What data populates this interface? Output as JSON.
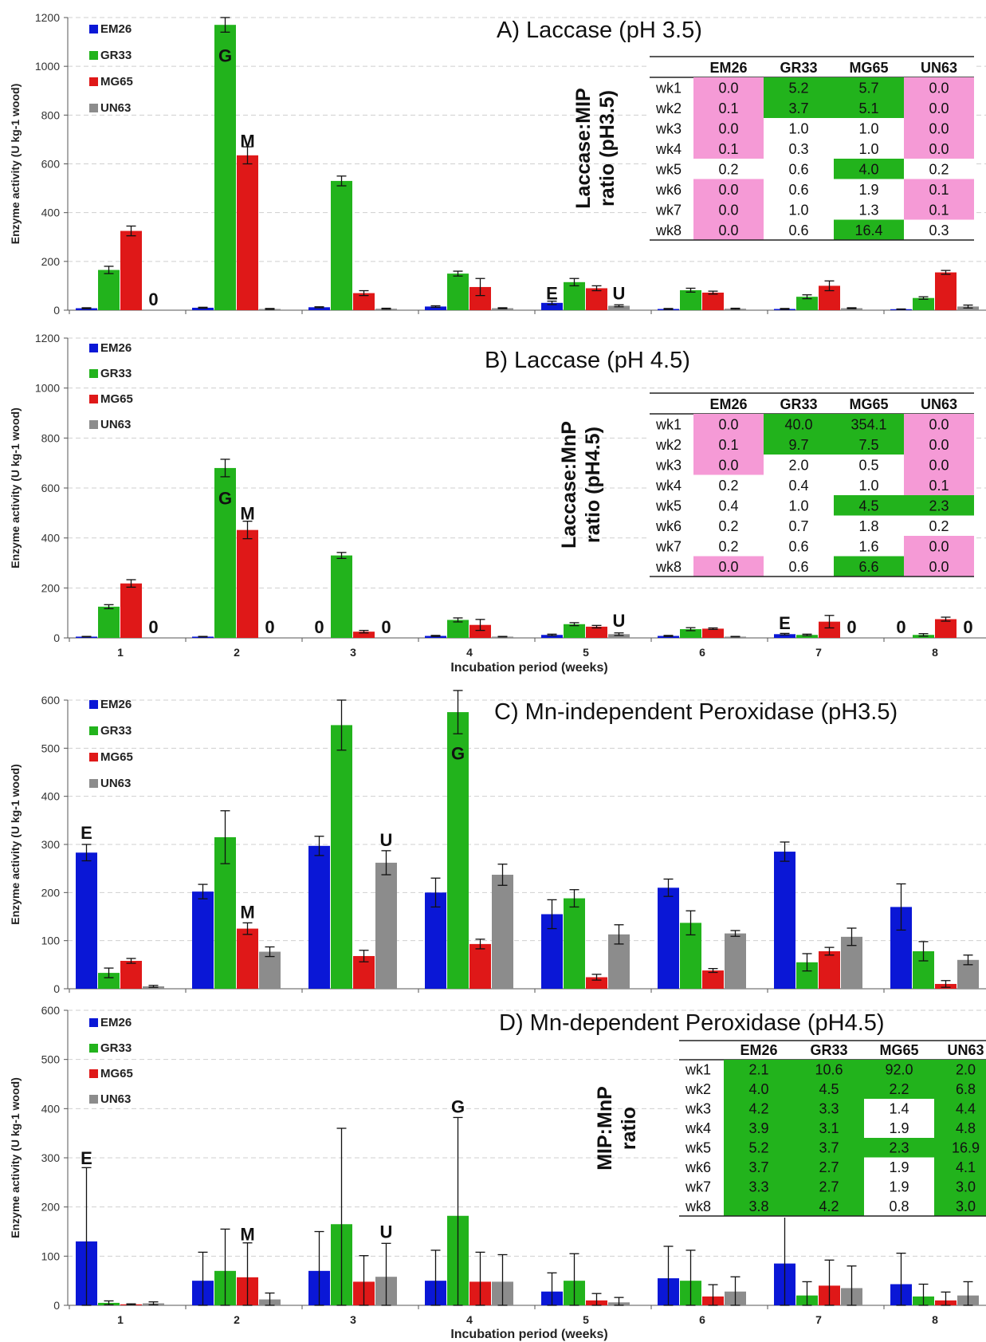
{
  "colors": {
    "EM26": "#0a17d6",
    "GR33": "#22b31c",
    "MG65": "#df1818",
    "UN63": "#8c8c8c",
    "cell_green": "#22b31c",
    "cell_pink": "#f59ad6",
    "axis": "#555555",
    "grid": "#cfcfcf"
  },
  "chart_data": [
    {
      "type": "bar",
      "title": "A) Laccase (pH 3.5)",
      "ylabel": "Enzyme activity (U kg-1 wood)",
      "xlabel": "",
      "ylim": [
        0,
        1200
      ],
      "yticks": [
        0,
        200,
        400,
        600,
        800,
        1000,
        1200
      ],
      "categories": [
        "1",
        "2",
        "3",
        "4",
        "5",
        "6",
        "7",
        "8"
      ],
      "show_xtick_labels": false,
      "legend_position": "top-left",
      "series": [
        {
          "name": "EM26",
          "values": [
            8,
            10,
            12,
            15,
            30,
            5,
            5,
            4
          ],
          "errors": [
            2,
            2,
            2,
            3,
            7,
            2,
            2,
            1
          ]
        },
        {
          "name": "GR33",
          "values": [
            165,
            1170,
            530,
            150,
            115,
            82,
            55,
            50
          ],
          "errors": [
            15,
            30,
            20,
            10,
            15,
            8,
            8,
            5
          ]
        },
        {
          "name": "MG65",
          "values": [
            325,
            635,
            70,
            95,
            90,
            72,
            100,
            155
          ],
          "errors": [
            20,
            35,
            10,
            35,
            10,
            6,
            20,
            8
          ]
        },
        {
          "name": "UN63",
          "values": [
            0,
            5,
            6,
            8,
            18,
            6,
            8,
            15
          ],
          "errors": [
            0,
            2,
            2,
            2,
            4,
            2,
            2,
            6
          ]
        }
      ],
      "annotations": [
        {
          "text": "0",
          "week": "1",
          "series": "UN63",
          "y": 45
        },
        {
          "text": "G",
          "week": "2",
          "series": "GR33",
          "y": 1045
        },
        {
          "text": "M",
          "week": "2",
          "series": "MG65",
          "y": 695
        },
        {
          "text": "E",
          "week": "5",
          "series": "EM26",
          "y": 70
        },
        {
          "text": "U",
          "week": "5",
          "series": "UN63",
          "y": 70
        }
      ],
      "table": {
        "side_label_lines": [
          "Laccase:MIP",
          "ratio (pH3.5)"
        ],
        "columns": [
          "",
          "EM26",
          "GR33",
          "MG65",
          "UN63"
        ],
        "rows": [
          [
            "wk1",
            "0.0",
            "5.2",
            "5.7",
            "0.0"
          ],
          [
            "wk2",
            "0.1",
            "3.7",
            "5.1",
            "0.0"
          ],
          [
            "wk3",
            "0.0",
            "1.0",
            "1.0",
            "0.0"
          ],
          [
            "wk4",
            "0.1",
            "0.3",
            "1.0",
            "0.0"
          ],
          [
            "wk5",
            "0.2",
            "0.6",
            "4.0",
            "0.2"
          ],
          [
            "wk6",
            "0.0",
            "0.6",
            "1.9",
            "0.1"
          ],
          [
            "wk7",
            "0.0",
            "1.0",
            "1.3",
            "0.1"
          ],
          [
            "wk8",
            "0.0",
            "0.6",
            "16.4",
            "0.3"
          ]
        ],
        "highlight": [
          [
            "p",
            "g",
            "g",
            "p"
          ],
          [
            "p",
            "g",
            "g",
            "p"
          ],
          [
            "p",
            "",
            "",
            "p"
          ],
          [
            "p",
            "",
            "",
            "p"
          ],
          [
            "",
            "",
            "g",
            ""
          ],
          [
            "p",
            "",
            "",
            "p"
          ],
          [
            "p",
            "",
            "",
            "p"
          ],
          [
            "p",
            "",
            "g",
            ""
          ]
        ]
      }
    },
    {
      "type": "bar",
      "title": "B) Laccase (pH 4.5)",
      "ylabel": "Enzyme activity (U kg-1 wood)",
      "xlabel": "Incubation period (weeks)",
      "ylim": [
        0,
        1200
      ],
      "yticks": [
        0,
        200,
        400,
        600,
        800,
        1000,
        1200
      ],
      "categories": [
        "1",
        "2",
        "3",
        "4",
        "5",
        "6",
        "7",
        "8"
      ],
      "show_xtick_labels": true,
      "legend_position": "top-left",
      "series": [
        {
          "name": "EM26",
          "values": [
            5,
            5,
            0,
            8,
            12,
            8,
            15,
            0
          ],
          "errors": [
            1,
            1,
            0,
            2,
            3,
            2,
            3,
            0
          ]
        },
        {
          "name": "GR33",
          "values": [
            125,
            680,
            330,
            72,
            55,
            35,
            12,
            12
          ],
          "errors": [
            8,
            35,
            12,
            8,
            6,
            6,
            3,
            5
          ]
        },
        {
          "name": "MG65",
          "values": [
            218,
            432,
            25,
            52,
            45,
            37,
            65,
            75
          ],
          "errors": [
            15,
            35,
            5,
            22,
            5,
            3,
            25,
            8
          ]
        },
        {
          "name": "UN63",
          "values": [
            0,
            0,
            0,
            5,
            15,
            5,
            0,
            0
          ],
          "errors": [
            0,
            0,
            0,
            1,
            5,
            1,
            0,
            0
          ]
        }
      ],
      "annotations": [
        {
          "text": "0",
          "week": "1",
          "series": "UN63",
          "y": 45
        },
        {
          "text": "G",
          "week": "2",
          "series": "GR33",
          "y": 560
        },
        {
          "text": "M",
          "week": "2",
          "series": "MG65",
          "y": 500
        },
        {
          "text": "0",
          "week": "2",
          "series": "UN63",
          "y": 45
        },
        {
          "text": "0",
          "week": "3",
          "series": "EM26",
          "y": 45
        },
        {
          "text": "0",
          "week": "3",
          "series": "UN63",
          "y": 45
        },
        {
          "text": "U",
          "week": "5",
          "series": "UN63",
          "y": 70
        },
        {
          "text": "E",
          "week": "7",
          "series": "EM26",
          "y": 60
        },
        {
          "text": "0",
          "week": "7",
          "series": "UN63",
          "y": 45
        },
        {
          "text": "0",
          "week": "8",
          "series": "EM26",
          "y": 45
        },
        {
          "text": "0",
          "week": "8",
          "series": "UN63",
          "y": 45
        }
      ],
      "table": {
        "side_label_lines": [
          "Laccase:MnP",
          "ratio (pH4.5)"
        ],
        "columns": [
          "",
          "EM26",
          "GR33",
          "MG65",
          "UN63"
        ],
        "rows": [
          [
            "wk1",
            "0.0",
            "40.0",
            "354.1",
            "0.0"
          ],
          [
            "wk2",
            "0.1",
            "9.7",
            "7.5",
            "0.0"
          ],
          [
            "wk3",
            "0.0",
            "2.0",
            "0.5",
            "0.0"
          ],
          [
            "wk4",
            "0.2",
            "0.4",
            "1.0",
            "0.1"
          ],
          [
            "wk5",
            "0.4",
            "1.0",
            "4.5",
            "2.3"
          ],
          [
            "wk6",
            "0.2",
            "0.7",
            "1.8",
            "0.2"
          ],
          [
            "wk7",
            "0.2",
            "0.6",
            "1.6",
            "0.0"
          ],
          [
            "wk8",
            "0.0",
            "0.6",
            "6.6",
            "0.0"
          ]
        ],
        "highlight": [
          [
            "p",
            "g",
            "g",
            "p"
          ],
          [
            "p",
            "g",
            "g",
            "p"
          ],
          [
            "p",
            "",
            "",
            "p"
          ],
          [
            "",
            "",
            "",
            "p"
          ],
          [
            "",
            "",
            "g",
            "g"
          ],
          [
            "",
            "",
            "",
            ""
          ],
          [
            "",
            "",
            "",
            "p"
          ],
          [
            "p",
            "",
            "g",
            "p"
          ]
        ]
      }
    },
    {
      "type": "bar",
      "title": "C) Mn-independent Peroxidase (pH3.5)",
      "ylabel": "Enzyme activity (U kg-1 wood)",
      "xlabel": "",
      "ylim": [
        0,
        600
      ],
      "yticks": [
        0,
        100,
        200,
        300,
        400,
        500,
        600
      ],
      "categories": [
        "1",
        "2",
        "3",
        "4",
        "5",
        "6",
        "7",
        "8"
      ],
      "show_xtick_labels": false,
      "legend_position": "top-left",
      "series": [
        {
          "name": "EM26",
          "values": [
            283,
            202,
            297,
            200,
            155,
            210,
            285,
            170
          ],
          "errors": [
            17,
            15,
            20,
            30,
            30,
            18,
            20,
            48
          ]
        },
        {
          "name": "GR33",
          "values": [
            33,
            315,
            548,
            575,
            188,
            137,
            55,
            78
          ],
          "errors": [
            10,
            55,
            52,
            45,
            18,
            25,
            18,
            20
          ]
        },
        {
          "name": "MG65",
          "values": [
            58,
            125,
            68,
            93,
            24,
            38,
            78,
            10
          ],
          "errors": [
            5,
            12,
            12,
            10,
            6,
            4,
            8,
            7
          ]
        },
        {
          "name": "UN63",
          "values": [
            5,
            77,
            262,
            237,
            113,
            115,
            108,
            60
          ],
          "errors": [
            2,
            10,
            25,
            22,
            20,
            6,
            18,
            10
          ]
        }
      ],
      "annotations": [
        {
          "text": "E",
          "week": "1",
          "series": "EM26",
          "y": 325
        },
        {
          "text": "G",
          "week": "4",
          "series": "GR33",
          "y": 490
        },
        {
          "text": "U",
          "week": "3",
          "series": "UN63",
          "y": 310
        },
        {
          "text": "M",
          "week": "2",
          "series": "MG65",
          "y": 160
        }
      ]
    },
    {
      "type": "bar",
      "title": "D) Mn-dependent Peroxidase (pH4.5)",
      "ylabel": "Enzyme activity (U kg-1 wood)",
      "xlabel": "Incubation period (weeks)",
      "ylim": [
        0,
        600
      ],
      "yticks": [
        0,
        100,
        200,
        300,
        400,
        500,
        600
      ],
      "categories": [
        "1",
        "2",
        "3",
        "4",
        "5",
        "6",
        "7",
        "8"
      ],
      "show_xtick_labels": true,
      "legend_position": "top-left",
      "series": [
        {
          "name": "EM26",
          "values": [
            130,
            50,
            70,
            50,
            28,
            55,
            85,
            43
          ],
          "errors": [
            150,
            58,
            80,
            62,
            38,
            65,
            98,
            63
          ]
        },
        {
          "name": "GR33",
          "values": [
            5,
            70,
            165,
            182,
            50,
            50,
            20,
            18
          ],
          "errors": [
            4,
            85,
            195,
            200,
            55,
            62,
            28,
            25
          ]
        },
        {
          "name": "MG65",
          "values": [
            2,
            57,
            48,
            48,
            10,
            18,
            40,
            10
          ],
          "errors": [
            1,
            70,
            53,
            60,
            14,
            24,
            52,
            17
          ]
        },
        {
          "name": "UN63",
          "values": [
            4,
            12,
            58,
            48,
            6,
            28,
            35,
            20
          ],
          "errors": [
            3,
            13,
            68,
            55,
            10,
            30,
            45,
            28
          ]
        }
      ],
      "annotations": [
        {
          "text": "E",
          "week": "1",
          "series": "EM26",
          "y": 300
        },
        {
          "text": "M",
          "week": "2",
          "series": "MG65",
          "y": 145
        },
        {
          "text": "U",
          "week": "3",
          "series": "UN63",
          "y": 150
        },
        {
          "text": "G",
          "week": "4",
          "series": "GR33",
          "y": 405
        }
      ],
      "table": {
        "side_label_lines": [
          "MIP:MnP",
          "ratio"
        ],
        "columns": [
          "",
          "EM26",
          "GR33",
          "MG65",
          "UN63"
        ],
        "rows": [
          [
            "wk1",
            "2.1",
            "10.6",
            "92.0",
            "2.0"
          ],
          [
            "wk2",
            "4.0",
            "4.5",
            "2.2",
            "6.8"
          ],
          [
            "wk3",
            "4.2",
            "3.3",
            "1.4",
            "4.4"
          ],
          [
            "wk4",
            "3.9",
            "3.1",
            "1.9",
            "4.8"
          ],
          [
            "wk5",
            "5.2",
            "3.7",
            "2.3",
            "16.9"
          ],
          [
            "wk6",
            "3.7",
            "2.7",
            "1.9",
            "4.1"
          ],
          [
            "wk7",
            "3.3",
            "2.7",
            "1.9",
            "3.0"
          ],
          [
            "wk8",
            "3.8",
            "4.2",
            "0.8",
            "3.0"
          ]
        ],
        "highlight": [
          [
            "g",
            "g",
            "g",
            "g"
          ],
          [
            "g",
            "g",
            "g",
            "g"
          ],
          [
            "g",
            "g",
            "",
            "g"
          ],
          [
            "g",
            "g",
            "",
            "g"
          ],
          [
            "g",
            "g",
            "g",
            "g"
          ],
          [
            "g",
            "g",
            "",
            "g"
          ],
          [
            "g",
            "g",
            "",
            "g"
          ],
          [
            "g",
            "g",
            "",
            "g"
          ]
        ]
      }
    }
  ]
}
